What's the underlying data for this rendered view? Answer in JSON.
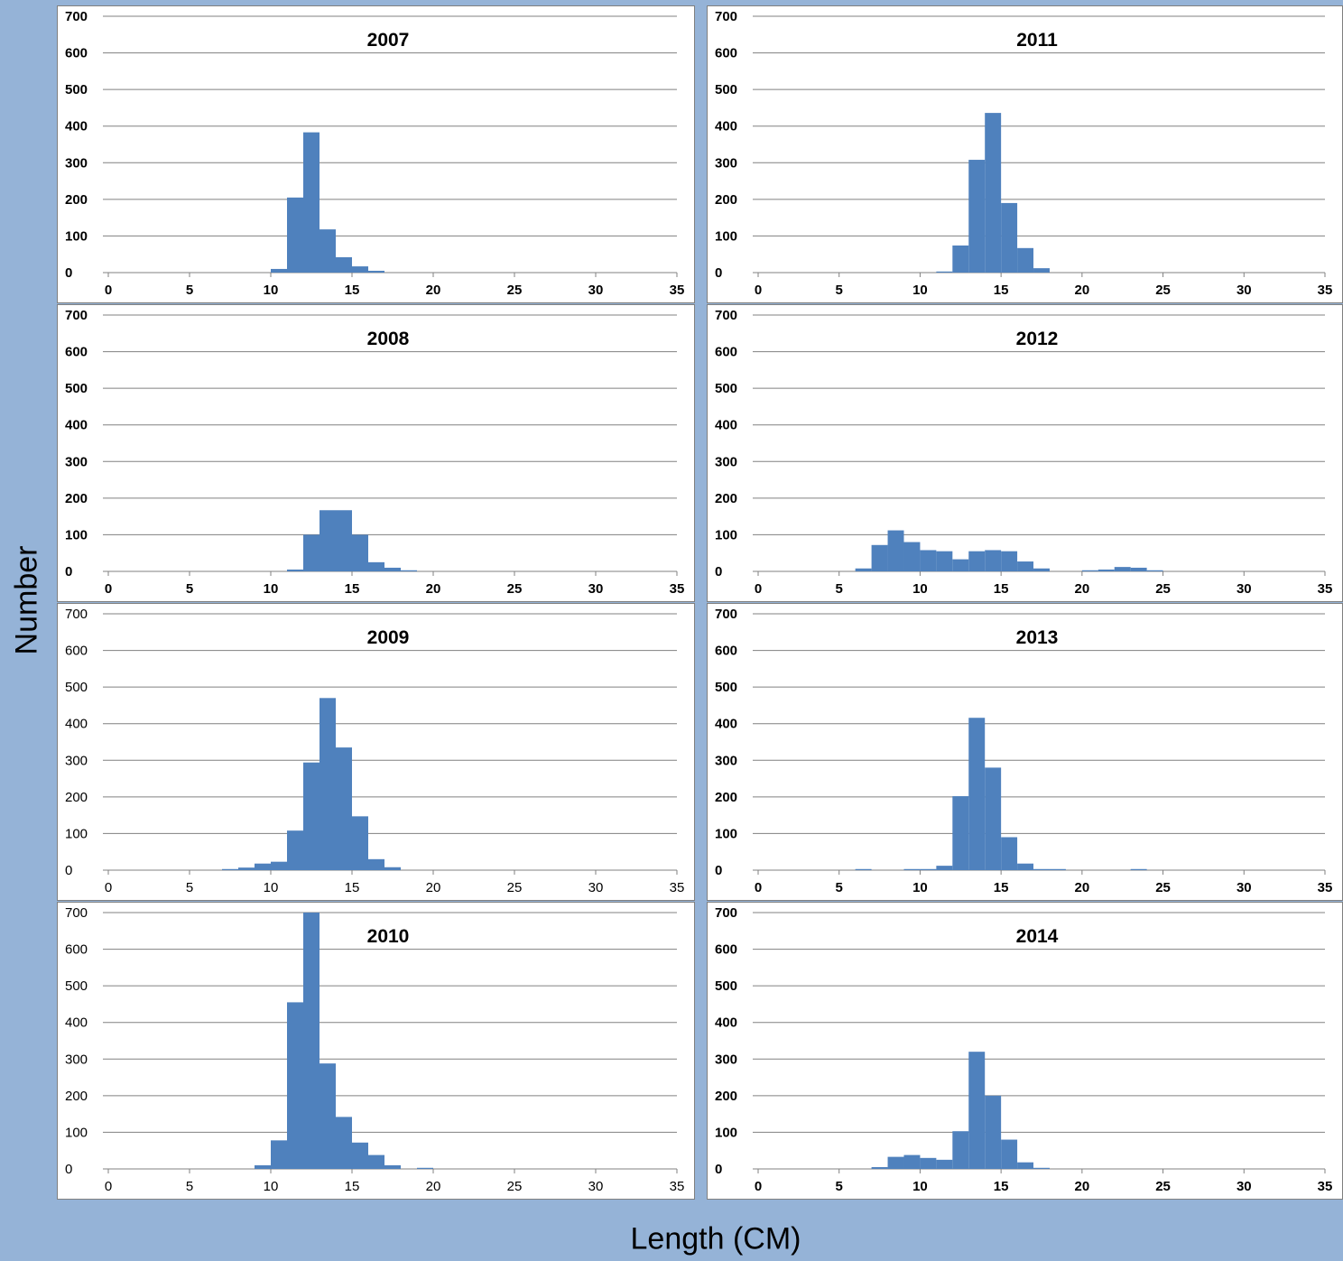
{
  "figure": {
    "ylabel": "Number",
    "xlabel": "Length (CM)",
    "bar_color": "#4f81bd",
    "background_color": "#95b3d7",
    "grid_color": "#808080"
  },
  "chart_data": [
    {
      "type": "bar",
      "title": "2007",
      "xlabel": "",
      "ylabel": "",
      "xlim": [
        0,
        35
      ],
      "ylim": [
        0,
        700
      ],
      "xticks": [
        "0",
        "5",
        "10",
        "15",
        "20",
        "25",
        "30",
        "35"
      ],
      "yticks": [
        "0",
        "100",
        "200",
        "300",
        "400",
        "500",
        "600",
        "700"
      ],
      "grid": true,
      "bin_width": 1,
      "x": [
        10,
        11,
        12,
        13,
        14,
        15,
        16
      ],
      "values": [
        10,
        205,
        383,
        118,
        42,
        17,
        5
      ]
    },
    {
      "type": "bar",
      "title": "2008",
      "xlabel": "",
      "ylabel": "",
      "xlim": [
        0,
        35
      ],
      "ylim": [
        0,
        700
      ],
      "xticks": [
        "0",
        "5",
        "10",
        "15",
        "20",
        "25",
        "30",
        "35"
      ],
      "yticks": [
        "0",
        "100",
        "200",
        "300",
        "400",
        "500",
        "600",
        "700"
      ],
      "grid": true,
      "bin_width": 1,
      "x": [
        11,
        12,
        13,
        14,
        15,
        16,
        17,
        18
      ],
      "values": [
        5,
        100,
        167,
        167,
        100,
        25,
        10,
        3
      ]
    },
    {
      "type": "bar",
      "title": "2009",
      "xlabel": "",
      "ylabel": "",
      "xlim": [
        0,
        35
      ],
      "ylim": [
        0,
        700
      ],
      "xticks": [
        "0",
        "5",
        "10",
        "15",
        "20",
        "25",
        "30",
        "35"
      ],
      "yticks": [
        "0",
        "100",
        "200",
        "300",
        "400",
        "500",
        "600",
        "700"
      ],
      "grid": true,
      "bin_width": 1,
      "x": [
        7,
        8,
        9,
        10,
        11,
        12,
        13,
        14,
        15,
        16,
        17
      ],
      "values": [
        3,
        7,
        18,
        23,
        108,
        294,
        470,
        335,
        147,
        30,
        8
      ]
    },
    {
      "type": "bar",
      "title": "2010",
      "xlabel": "",
      "ylabel": "",
      "xlim": [
        0,
        35
      ],
      "ylim": [
        0,
        700
      ],
      "xticks": [
        "0",
        "5",
        "10",
        "15",
        "20",
        "25",
        "30",
        "35"
      ],
      "yticks": [
        "0",
        "100",
        "200",
        "300",
        "400",
        "500",
        "600",
        "700"
      ],
      "grid": true,
      "bin_width": 1,
      "x": [
        9,
        10,
        11,
        12,
        13,
        14,
        15,
        16,
        17,
        19
      ],
      "values": [
        10,
        78,
        455,
        700,
        288,
        142,
        72,
        38,
        10,
        3
      ]
    },
    {
      "type": "bar",
      "title": "2011",
      "xlabel": "",
      "ylabel": "",
      "xlim": [
        0,
        35
      ],
      "ylim": [
        0,
        700
      ],
      "xticks": [
        "0",
        "5",
        "10",
        "15",
        "20",
        "25",
        "30",
        "35"
      ],
      "yticks": [
        "0",
        "100",
        "200",
        "300",
        "400",
        "500",
        "600",
        "700"
      ],
      "grid": true,
      "bin_width": 1,
      "x": [
        11,
        12,
        13,
        14,
        15,
        16,
        17
      ],
      "values": [
        3,
        74,
        308,
        436,
        190,
        67,
        12
      ]
    },
    {
      "type": "bar",
      "title": "2012",
      "xlabel": "",
      "ylabel": "",
      "xlim": [
        0,
        35
      ],
      "ylim": [
        0,
        700
      ],
      "xticks": [
        "0",
        "5",
        "10",
        "15",
        "20",
        "25",
        "30",
        "35"
      ],
      "yticks": [
        "0",
        "100",
        "200",
        "300",
        "400",
        "500",
        "600",
        "700"
      ],
      "grid": true,
      "bin_width": 1,
      "x": [
        6,
        7,
        8,
        9,
        10,
        11,
        12,
        13,
        14,
        15,
        16,
        17,
        20,
        21,
        22,
        23,
        24
      ],
      "values": [
        8,
        72,
        112,
        80,
        58,
        55,
        33,
        55,
        58,
        55,
        27,
        8,
        3,
        5,
        12,
        10,
        3
      ]
    },
    {
      "type": "bar",
      "title": "2013",
      "xlabel": "",
      "ylabel": "",
      "xlim": [
        0,
        35
      ],
      "ylim": [
        0,
        700
      ],
      "xticks": [
        "0",
        "5",
        "10",
        "15",
        "20",
        "25",
        "30",
        "35"
      ],
      "yticks": [
        "0",
        "100",
        "200",
        "300",
        "400",
        "500",
        "600",
        "700"
      ],
      "grid": true,
      "bin_width": 1,
      "x": [
        6,
        9,
        10,
        11,
        12,
        13,
        14,
        15,
        16,
        17,
        18,
        23
      ],
      "values": [
        3,
        3,
        3,
        12,
        202,
        416,
        280,
        90,
        18,
        3,
        3,
        3
      ]
    },
    {
      "type": "bar",
      "title": "2014",
      "xlabel": "",
      "ylabel": "",
      "xlim": [
        0,
        35
      ],
      "ylim": [
        0,
        700
      ],
      "xticks": [
        "0",
        "5",
        "10",
        "15",
        "20",
        "25",
        "30",
        "35"
      ],
      "yticks": [
        "0",
        "100",
        "200",
        "300",
        "400",
        "500",
        "600",
        "700"
      ],
      "grid": true,
      "bin_width": 1,
      "x": [
        7,
        8,
        9,
        10,
        11,
        12,
        13,
        14,
        15,
        16,
        17
      ],
      "values": [
        5,
        33,
        38,
        30,
        25,
        103,
        320,
        200,
        80,
        18,
        3
      ]
    }
  ]
}
